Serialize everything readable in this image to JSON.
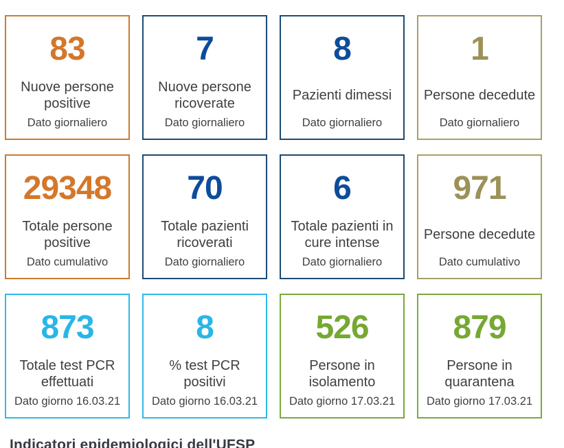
{
  "page": {
    "background": "#ffffff",
    "heading": "Indicatori epidemiologici dell'UFSP"
  },
  "colors": {
    "orange": {
      "value": "#d4772a",
      "border": "#cc7a2f"
    },
    "navy": {
      "value": "#0d4c9b",
      "border": "#1d4a71"
    },
    "olive": {
      "value": "#9c9157",
      "border": "#a79e68"
    },
    "cyan": {
      "value": "#29b6e8",
      "border": "#2cb9e9"
    },
    "green": {
      "value": "#76a832",
      "border": "#7aa93a"
    },
    "label_text": "#3f3f3f"
  },
  "cards": [
    {
      "value": "83",
      "label": "Nuove persone positive",
      "sublabel": "Dato giornaliero",
      "theme": "orange"
    },
    {
      "value": "7",
      "label": "Nuove persone ricoverate",
      "sublabel": "Dato giornaliero",
      "theme": "navy"
    },
    {
      "value": "8",
      "label": "Pazienti dimessi",
      "sublabel": "Dato giornaliero",
      "theme": "navy"
    },
    {
      "value": "1",
      "label": "Persone decedute",
      "sublabel": "Dato giornaliero",
      "theme": "olive"
    },
    {
      "value": "29348",
      "label": "Totale persone positive",
      "sublabel": "Dato cumulativo",
      "theme": "orange"
    },
    {
      "value": "70",
      "label": "Totale pazienti ricoverati",
      "sublabel": "Dato giornaliero",
      "theme": "navy"
    },
    {
      "value": "6",
      "label": "Totale pazienti in cure intense",
      "sublabel": "Dato giornaliero",
      "theme": "navy"
    },
    {
      "value": "971",
      "label": "Persone decedute",
      "sublabel": "Dato cumulativo",
      "theme": "olive"
    },
    {
      "value": "873",
      "label": "Totale test PCR effettuati",
      "sublabel": "Dato giorno 16.03.21",
      "theme": "cyan"
    },
    {
      "value": "8",
      "label": "% test PCR positivi",
      "sublabel": "Dato giorno 16.03.21",
      "theme": "cyan"
    },
    {
      "value": "526",
      "label": "Persone in isolamento",
      "sublabel": "Dato giorno 17.03.21",
      "theme": "green"
    },
    {
      "value": "879",
      "label": "Persone in quarantena",
      "sublabel": "Dato giorno 17.03.21",
      "theme": "green"
    }
  ]
}
